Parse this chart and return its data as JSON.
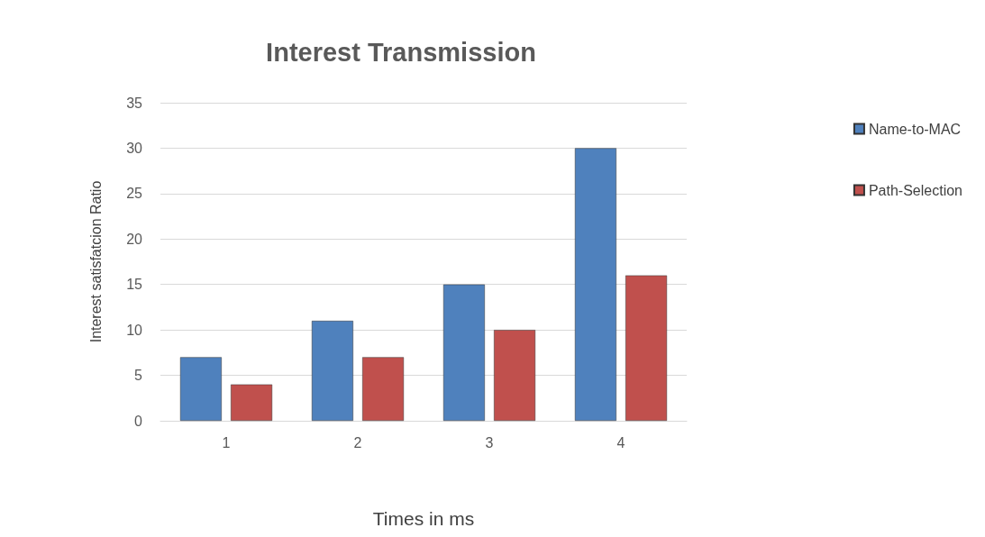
{
  "chart_data": {
    "type": "bar",
    "title": "Interest Transmission",
    "xlabel": "Times in ms",
    "ylabel": "Interest satisfatcion Ratio",
    "categories": [
      "1",
      "2",
      "3",
      "4"
    ],
    "series": [
      {
        "name": "Name-to-MAC",
        "color": "#4f81bd",
        "values": [
          7,
          11,
          15,
          30
        ]
      },
      {
        "name": "Path-Selection",
        "color": "#c0504d",
        "values": [
          4,
          7,
          10,
          16
        ]
      }
    ],
    "ylim": [
      0,
      35
    ],
    "yticks": [
      0,
      5,
      10,
      15,
      20,
      25,
      30,
      35
    ],
    "grid": "y",
    "legend": "right"
  }
}
